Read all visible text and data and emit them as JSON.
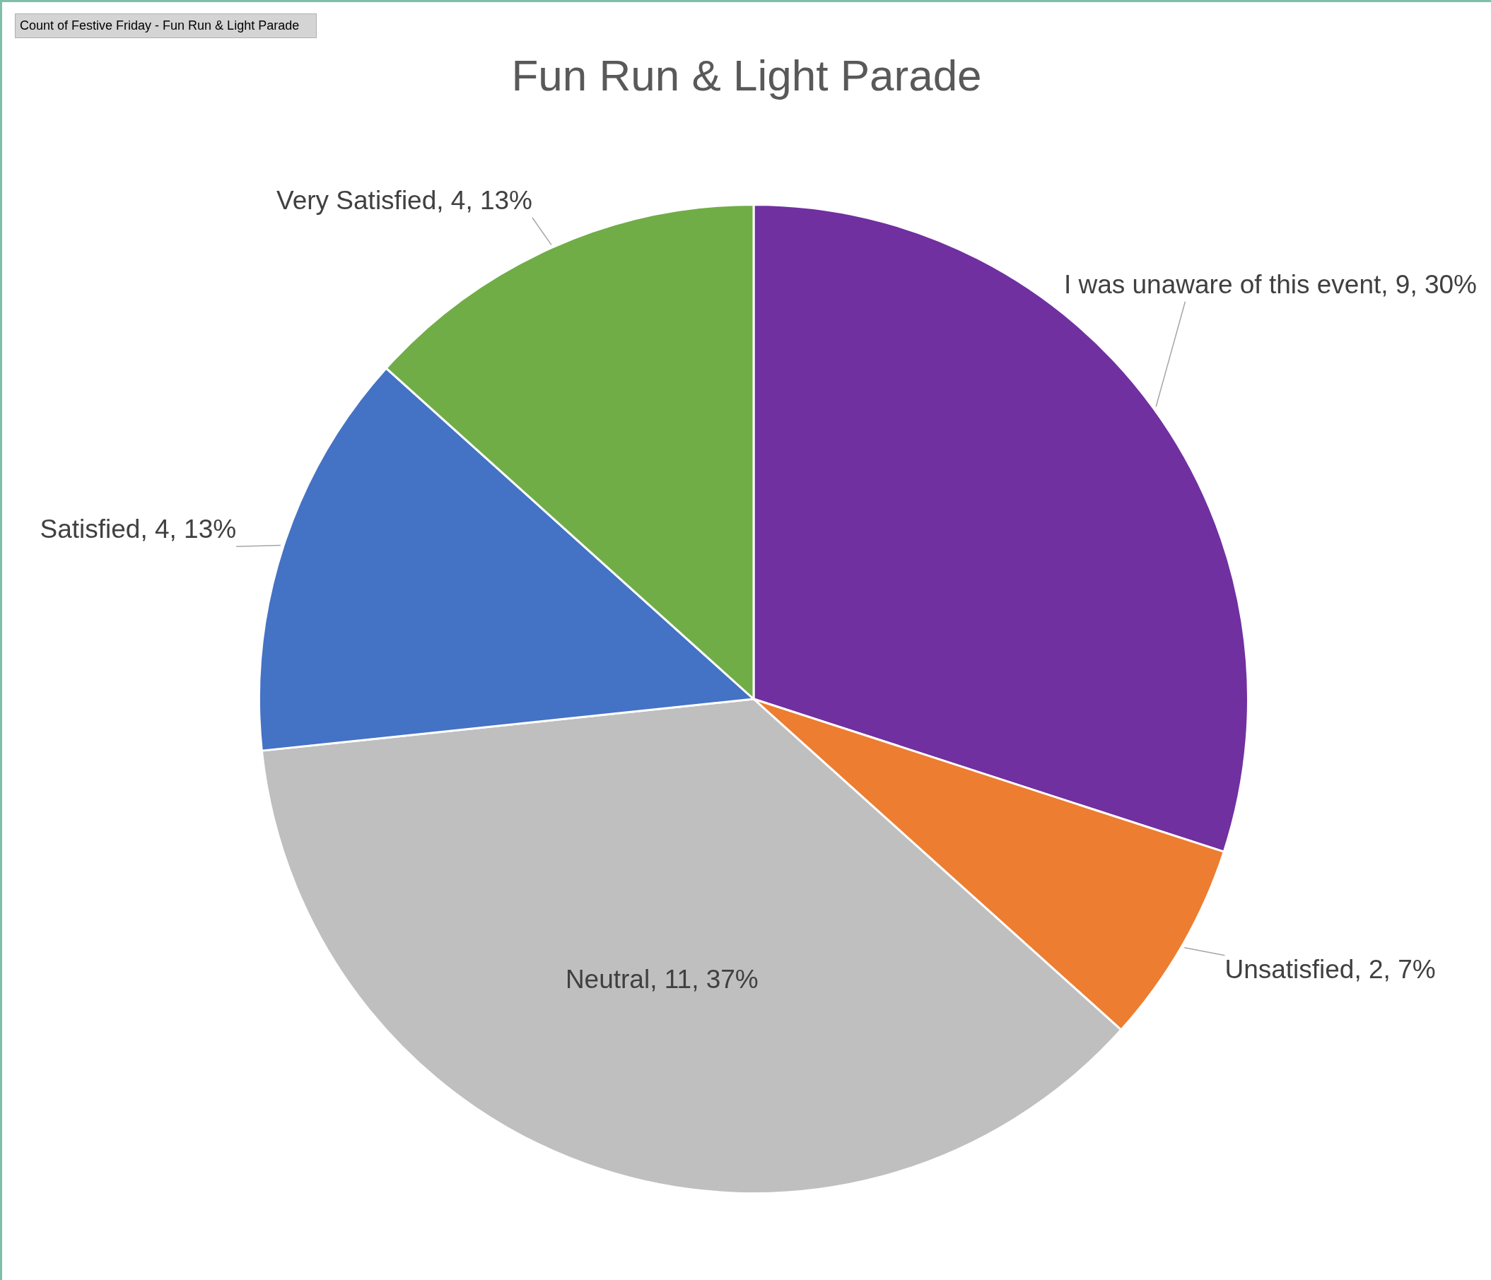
{
  "chart_data": {
    "type": "pie",
    "title": "Fun Run & Light Parade",
    "categories": [
      "I was unaware of this event",
      "Unsatisfied",
      "Neutral",
      "Satisfied",
      "Very Satisfied"
    ],
    "values": [
      9,
      2,
      11,
      4,
      4
    ],
    "colors": [
      "#7030a0",
      "#ed7d31",
      "#bfbfbf",
      "#4472c4",
      "#70ad47"
    ],
    "value_labels": [
      "9, 30%",
      "2, 7%",
      "11, 37%",
      "4, 13%",
      "4, 13%"
    ],
    "annotations": [
      "Count of Festive Friday - Fun Run & Light Parade"
    ],
    "legend": false
  }
}
